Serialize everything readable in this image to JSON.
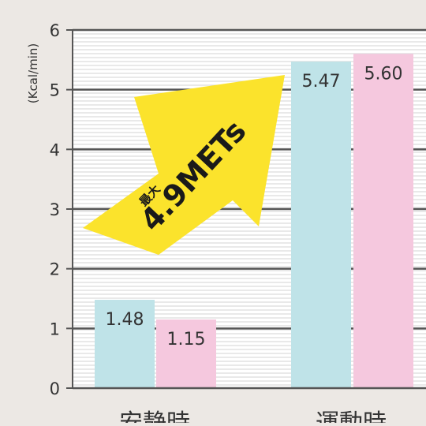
{
  "chart_data": {
    "type": "bar",
    "ylabel": "(Kcal/min)",
    "ylim": [
      0,
      6
    ],
    "yticks": [
      0,
      1,
      2,
      3,
      4,
      5,
      6
    ],
    "categories": [
      "安静時",
      "運動時"
    ],
    "series": [
      {
        "values": [
          1.48,
          5.47
        ],
        "labels": [
          "1.48",
          "5.47"
        ],
        "color": "#bfe3e8"
      },
      {
        "values": [
          1.15,
          5.6
        ],
        "labels": [
          "1.15",
          "5.60"
        ],
        "color": "#f5c8de"
      }
    ],
    "annotation": {
      "small_text": "最大",
      "big_text": "4.9METs",
      "color": "#fbe32c"
    },
    "grid": "striped horizontal"
  }
}
